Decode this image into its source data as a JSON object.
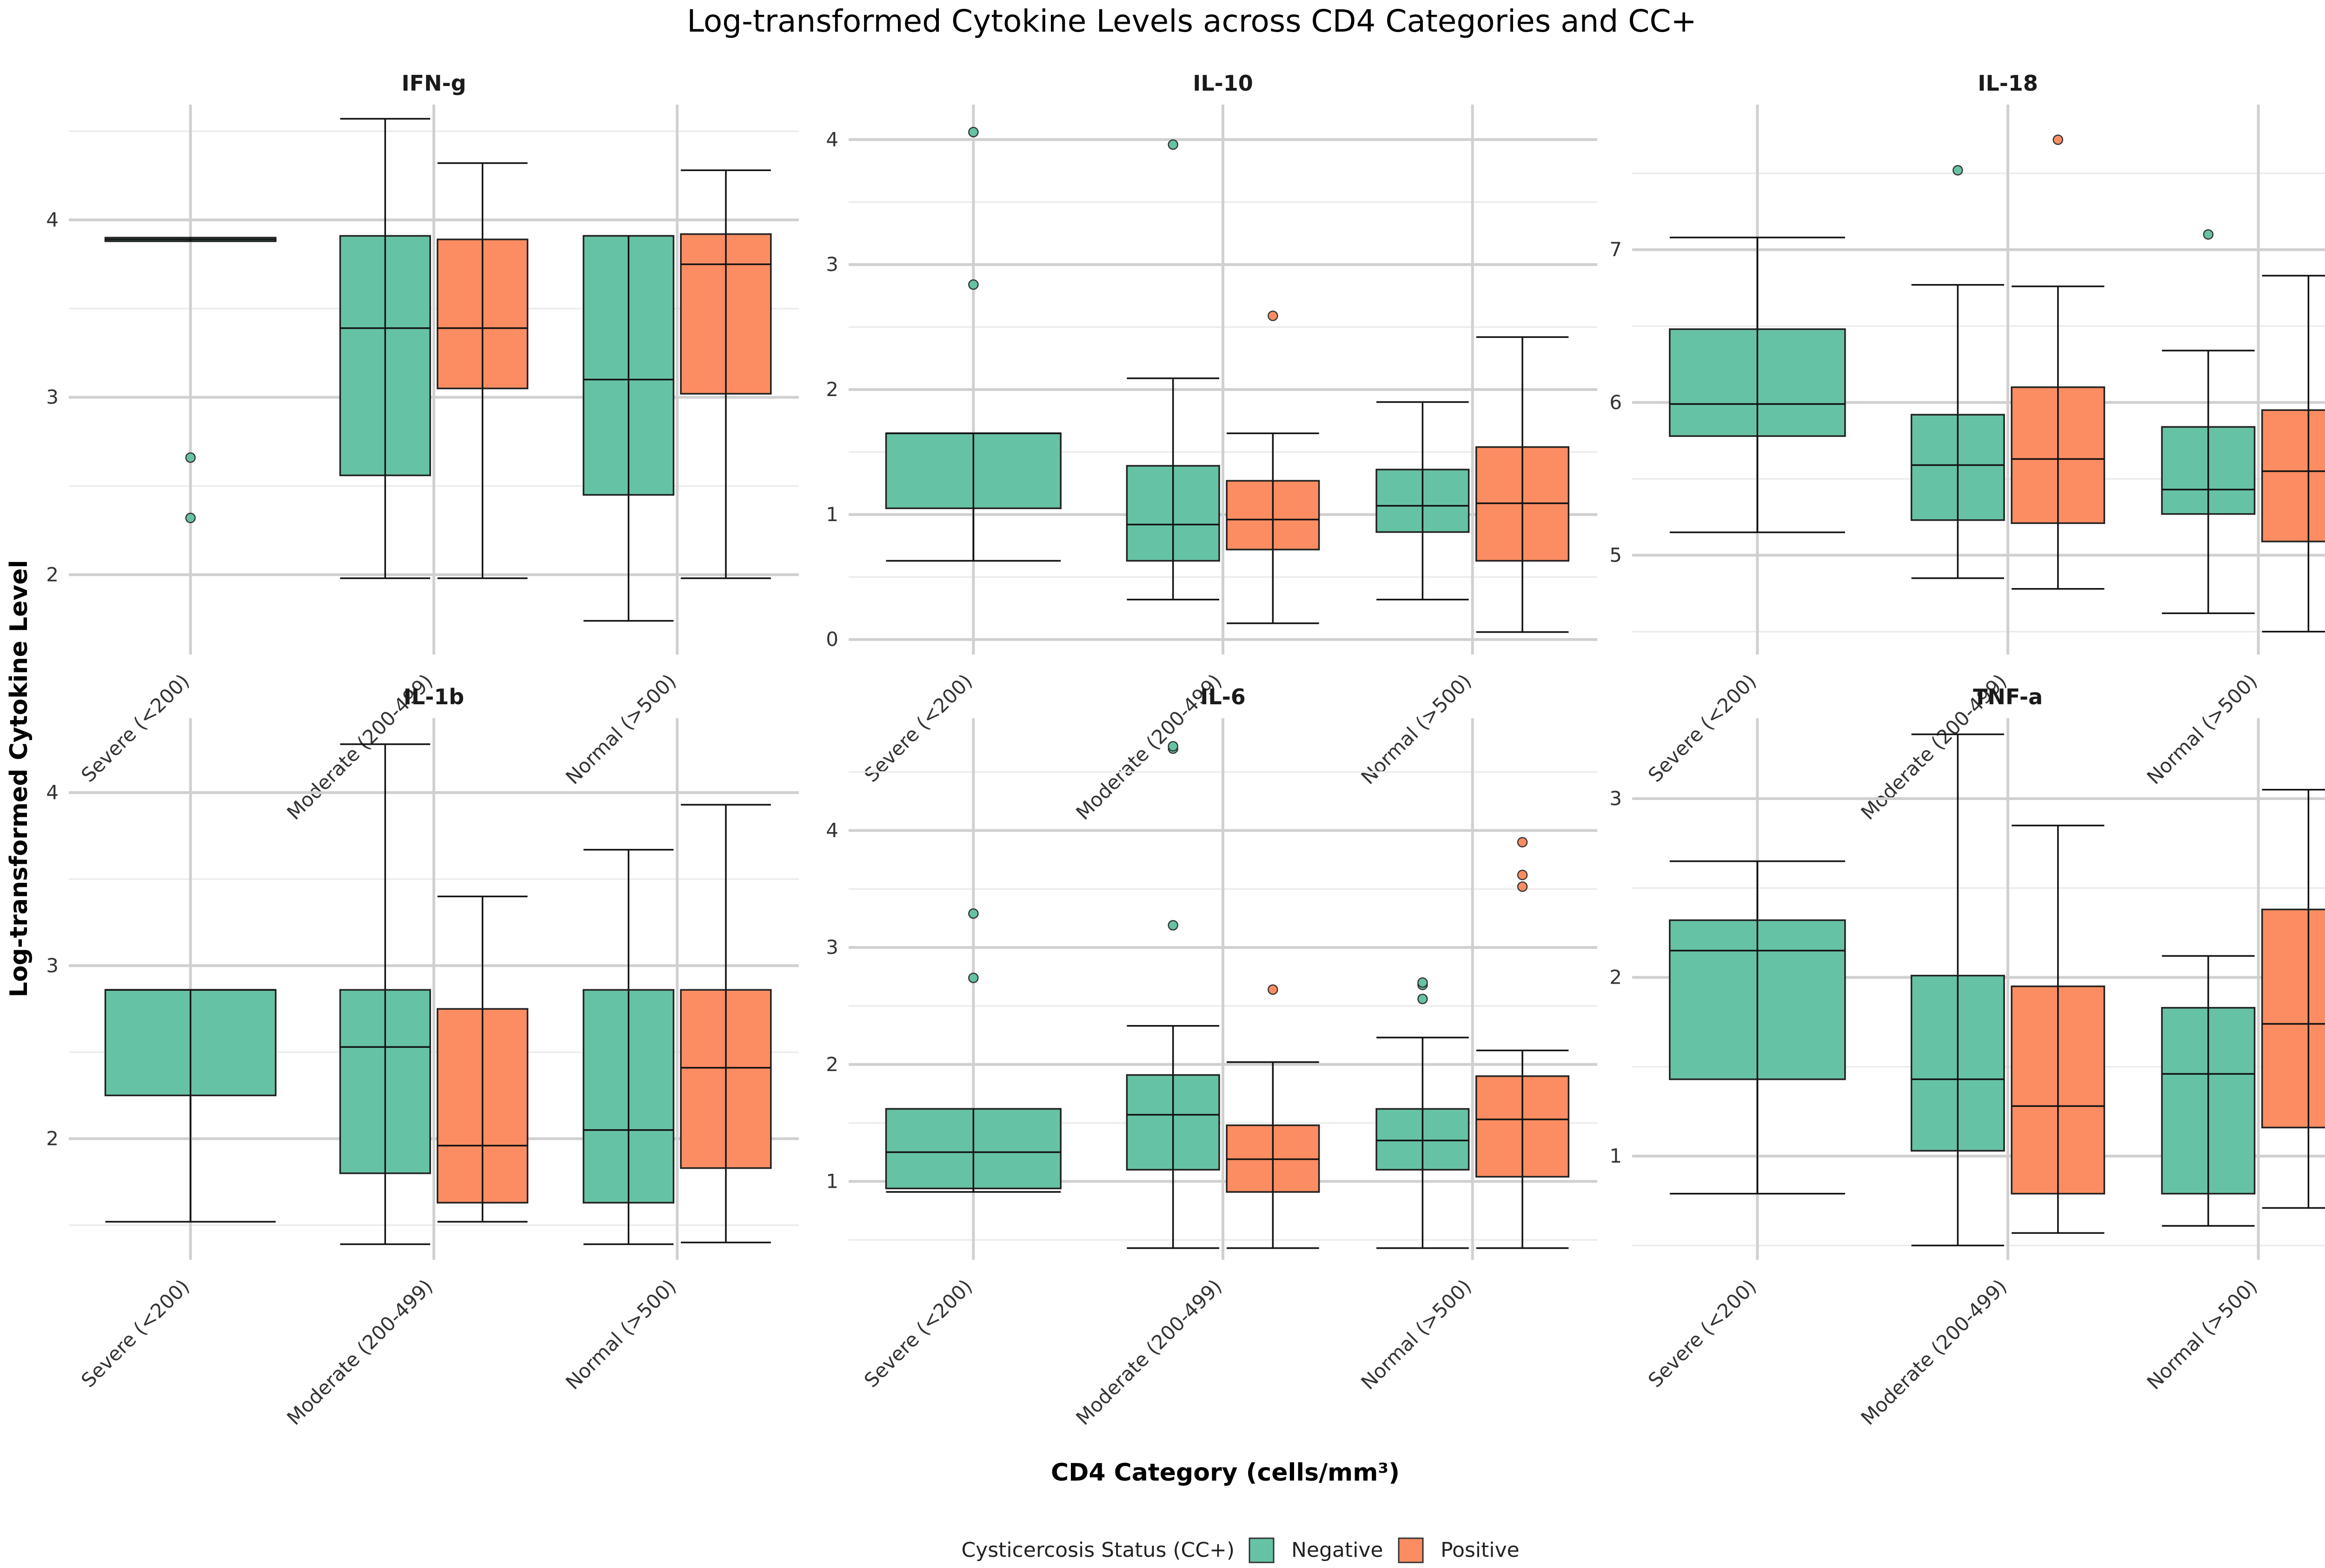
{
  "chart_data": {
    "type": "boxplot",
    "title": "Log-transformed Cytokine Levels across CD4 Categories and CC+",
    "xlabel": "CD4 Category (cells/mm³)",
    "ylabel": "Log-transformed Cytokine Level",
    "categories": [
      "Severe (<200)",
      "Moderate (200-499)",
      "Normal (>500)"
    ],
    "legend": {
      "title": "Cysticercosis Status (CC+)",
      "placement": "bottom",
      "items": [
        {
          "name": "Negative",
          "color": "#66c2a5"
        },
        {
          "name": "Positive",
          "color": "#fc8d62"
        }
      ]
    },
    "panels": [
      {
        "name": "IFN-g",
        "ylim": [
          1.55,
          4.65
        ],
        "yticks": [
          2,
          3,
          4
        ],
        "minor": [
          1.5,
          2.5,
          3.5,
          4.5
        ],
        "boxes": [
          {
            "category": 0,
            "group": "Negative",
            "whisker_low": 3.88,
            "q1": 3.88,
            "median": 3.89,
            "q3": 3.9,
            "whisker_high": 3.9,
            "outliers": [
              2.66,
              2.32
            ]
          },
          {
            "category": 1,
            "group": "Negative",
            "whisker_low": 1.98,
            "q1": 2.56,
            "median": 3.39,
            "q3": 3.91,
            "whisker_high": 4.57,
            "outliers": []
          },
          {
            "category": 1,
            "group": "Positive",
            "whisker_low": 1.98,
            "q1": 3.05,
            "median": 3.39,
            "q3": 3.89,
            "whisker_high": 4.32,
            "outliers": []
          },
          {
            "category": 2,
            "group": "Negative",
            "whisker_low": 1.74,
            "q1": 2.45,
            "median": 3.1,
            "q3": 3.91,
            "whisker_high": 3.91,
            "outliers": []
          },
          {
            "category": 2,
            "group": "Positive",
            "whisker_low": 1.98,
            "q1": 3.02,
            "median": 3.75,
            "q3": 3.92,
            "whisker_high": 4.28,
            "outliers": []
          }
        ]
      },
      {
        "name": "IL-10",
        "ylim": [
          -0.12,
          4.28
        ],
        "yticks": [
          0,
          1,
          2,
          3,
          4
        ],
        "minor": [
          0.5,
          1.5,
          2.5,
          3.5
        ],
        "boxes": [
          {
            "category": 0,
            "group": "Negative",
            "whisker_low": 0.63,
            "q1": 1.05,
            "median": 1.65,
            "q3": 1.65,
            "whisker_high": 1.65,
            "outliers": [
              2.84,
              4.06
            ]
          },
          {
            "category": 1,
            "group": "Negative",
            "whisker_low": 0.32,
            "q1": 0.63,
            "median": 0.92,
            "q3": 1.39,
            "whisker_high": 2.09,
            "outliers": [
              3.96
            ]
          },
          {
            "category": 1,
            "group": "Positive",
            "whisker_low": 0.13,
            "q1": 0.72,
            "median": 0.96,
            "q3": 1.27,
            "whisker_high": 1.65,
            "outliers": [
              2.59
            ]
          },
          {
            "category": 2,
            "group": "Negative",
            "whisker_low": 0.32,
            "q1": 0.86,
            "median": 1.07,
            "q3": 1.36,
            "whisker_high": 1.9,
            "outliers": []
          },
          {
            "category": 2,
            "group": "Positive",
            "whisker_low": 0.06,
            "q1": 0.63,
            "median": 1.09,
            "q3": 1.54,
            "whisker_high": 2.42,
            "outliers": []
          }
        ]
      },
      {
        "name": "IL-18",
        "ylim": [
          4.35,
          7.95
        ],
        "yticks": [
          5,
          6,
          7
        ],
        "minor": [
          4.5,
          5.5,
          6.5,
          7.5
        ],
        "boxes": [
          {
            "category": 0,
            "group": "Negative",
            "whisker_low": 5.15,
            "q1": 5.78,
            "median": 5.99,
            "q3": 6.48,
            "whisker_high": 7.08,
            "outliers": []
          },
          {
            "category": 1,
            "group": "Negative",
            "whisker_low": 4.85,
            "q1": 5.23,
            "median": 5.59,
            "q3": 5.92,
            "whisker_high": 6.77,
            "outliers": [
              7.52
            ]
          },
          {
            "category": 1,
            "group": "Positive",
            "whisker_low": 4.78,
            "q1": 5.21,
            "median": 5.63,
            "q3": 6.1,
            "whisker_high": 6.76,
            "outliers": [
              7.72
            ]
          },
          {
            "category": 2,
            "group": "Negative",
            "whisker_low": 4.62,
            "q1": 5.27,
            "median": 5.43,
            "q3": 5.84,
            "whisker_high": 6.34,
            "outliers": [
              7.1
            ]
          },
          {
            "category": 2,
            "group": "Positive",
            "whisker_low": 4.5,
            "q1": 5.09,
            "median": 5.55,
            "q3": 5.95,
            "whisker_high": 6.83,
            "outliers": []
          }
        ]
      },
      {
        "name": "IL-1b",
        "ylim": [
          1.3,
          4.43
        ],
        "yticks": [
          2,
          3,
          4
        ],
        "minor": [
          1.5,
          2.5,
          3.5
        ],
        "boxes": [
          {
            "category": 0,
            "group": "Negative",
            "whisker_low": 1.52,
            "q1": 2.25,
            "median": 2.86,
            "q3": 2.86,
            "whisker_high": 2.86,
            "outliers": []
          },
          {
            "category": 1,
            "group": "Negative",
            "whisker_low": 1.39,
            "q1": 1.8,
            "median": 2.53,
            "q3": 2.86,
            "whisker_high": 4.28,
            "outliers": []
          },
          {
            "category": 1,
            "group": "Positive",
            "whisker_low": 1.52,
            "q1": 1.63,
            "median": 1.96,
            "q3": 2.75,
            "whisker_high": 3.4,
            "outliers": []
          },
          {
            "category": 2,
            "group": "Negative",
            "whisker_low": 1.39,
            "q1": 1.63,
            "median": 2.05,
            "q3": 2.86,
            "whisker_high": 3.67,
            "outliers": []
          },
          {
            "category": 2,
            "group": "Positive",
            "whisker_low": 1.4,
            "q1": 1.83,
            "median": 2.41,
            "q3": 2.86,
            "whisker_high": 3.93,
            "outliers": []
          }
        ]
      },
      {
        "name": "IL-6",
        "ylim": [
          0.33,
          4.96
        ],
        "yticks": [
          1,
          2,
          3,
          4
        ],
        "minor": [
          0.5,
          1.5,
          2.5,
          3.5,
          4.5
        ],
        "boxes": [
          {
            "category": 0,
            "group": "Negative",
            "whisker_low": 0.91,
            "q1": 0.94,
            "median": 1.25,
            "q3": 1.62,
            "whisker_high": 1.62,
            "outliers": [
              2.74,
              3.29
            ]
          },
          {
            "category": 1,
            "group": "Negative",
            "whisker_low": 0.43,
            "q1": 1.1,
            "median": 1.57,
            "q3": 1.91,
            "whisker_high": 2.33,
            "outliers": [
              3.19,
              4.7,
              4.72
            ]
          },
          {
            "category": 1,
            "group": "Positive",
            "whisker_low": 0.43,
            "q1": 0.91,
            "median": 1.19,
            "q3": 1.48,
            "whisker_high": 2.02,
            "outliers": [
              2.64
            ]
          },
          {
            "category": 2,
            "group": "Negative",
            "whisker_low": 0.43,
            "q1": 1.1,
            "median": 1.35,
            "q3": 1.62,
            "whisker_high": 2.23,
            "outliers": [
              2.56,
              2.68,
              2.7
            ]
          },
          {
            "category": 2,
            "group": "Positive",
            "whisker_low": 0.43,
            "q1": 1.04,
            "median": 1.53,
            "q3": 1.9,
            "whisker_high": 2.12,
            "outliers": [
              3.52,
              3.62,
              3.9
            ]
          }
        ]
      },
      {
        "name": "TNF-a",
        "ylim": [
          0.42,
          3.45
        ],
        "yticks": [
          1,
          2,
          3
        ],
        "minor": [
          0.5,
          1.5,
          2.5
        ],
        "boxes": [
          {
            "category": 0,
            "group": "Negative",
            "whisker_low": 0.79,
            "q1": 1.43,
            "median": 2.15,
            "q3": 2.32,
            "whisker_high": 2.65,
            "outliers": []
          },
          {
            "category": 1,
            "group": "Negative",
            "whisker_low": 0.5,
            "q1": 1.03,
            "median": 1.43,
            "q3": 2.01,
            "whisker_high": 3.36,
            "outliers": []
          },
          {
            "category": 1,
            "group": "Positive",
            "whisker_low": 0.57,
            "q1": 0.79,
            "median": 1.28,
            "q3": 1.95,
            "whisker_high": 2.85,
            "outliers": []
          },
          {
            "category": 2,
            "group": "Negative",
            "whisker_low": 0.61,
            "q1": 0.79,
            "median": 1.46,
            "q3": 1.83,
            "whisker_high": 2.12,
            "outliers": []
          },
          {
            "category": 2,
            "group": "Positive",
            "whisker_low": 0.71,
            "q1": 1.16,
            "median": 1.74,
            "q3": 2.38,
            "whisker_high": 3.05,
            "outliers": []
          }
        ]
      }
    ]
  }
}
